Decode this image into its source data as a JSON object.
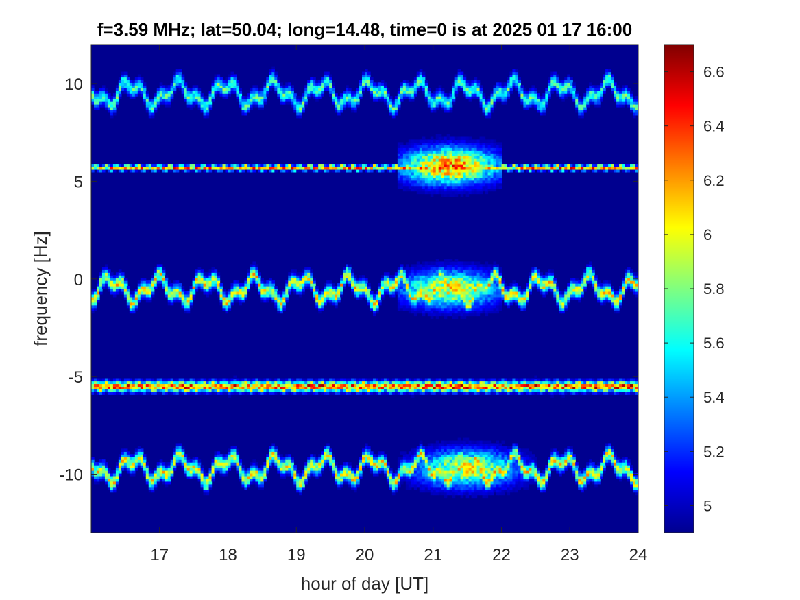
{
  "chart_data": {
    "type": "heatmap",
    "title": "f=3.59 MHz;  lat=50.04; long=14.48, time=0 is at 2025 01 17 16:00",
    "xlabel": "hour of day [UT]",
    "ylabel": "frequency [Hz]",
    "xlim": [
      16,
      24
    ],
    "ylim": [
      -13,
      12
    ],
    "xticks": [
      17,
      18,
      19,
      20,
      21,
      22,
      23,
      24
    ],
    "yticks": [
      -10,
      -5,
      0,
      5,
      10
    ],
    "colorbar": {
      "colormap": "jet",
      "clim": [
        4.9,
        6.7
      ],
      "ticks": [
        "4.9",
        "5",
        "5.2",
        "5.4",
        "5.6",
        "5.8",
        "6",
        "6.2",
        "6.4",
        "6.6"
      ],
      "tick_values": [
        4.9,
        5.0,
        5.2,
        5.4,
        5.6,
        5.8,
        6.0,
        6.2,
        6.4,
        6.6
      ]
    },
    "background_level": 4.9,
    "features": [
      {
        "name": "upper trace",
        "center_hz": 9.5,
        "t_start": 16.0,
        "t_end": 24.0,
        "peak_level": 5.9
      },
      {
        "name": "upper constant line",
        "center_hz": 5.7,
        "t_start": 16.0,
        "t_end": 24.0,
        "peak_level": 6.6
      },
      {
        "name": "central trace",
        "center_hz": -0.5,
        "t_start": 16.0,
        "t_end": 24.0,
        "peak_level": 6.3
      },
      {
        "name": "lower constant line",
        "center_hz": -5.5,
        "t_start": 16.0,
        "t_end": 24.0,
        "peak_level": 6.7
      },
      {
        "name": "lower trace",
        "center_hz": -9.7,
        "t_start": 16.0,
        "t_end": 24.0,
        "peak_level": 6.3
      },
      {
        "name": "enhanced spread",
        "center_hz": 5.8,
        "t_start": 20.5,
        "t_end": 22.0,
        "peak_level": 6.6
      },
      {
        "name": "enhanced spread",
        "center_hz": -0.5,
        "t_start": 20.5,
        "t_end": 22.0,
        "peak_level": 6.3
      },
      {
        "name": "enhanced spread",
        "center_hz": -9.7,
        "t_start": 20.5,
        "t_end": 22.5,
        "peak_level": 6.3
      }
    ]
  }
}
